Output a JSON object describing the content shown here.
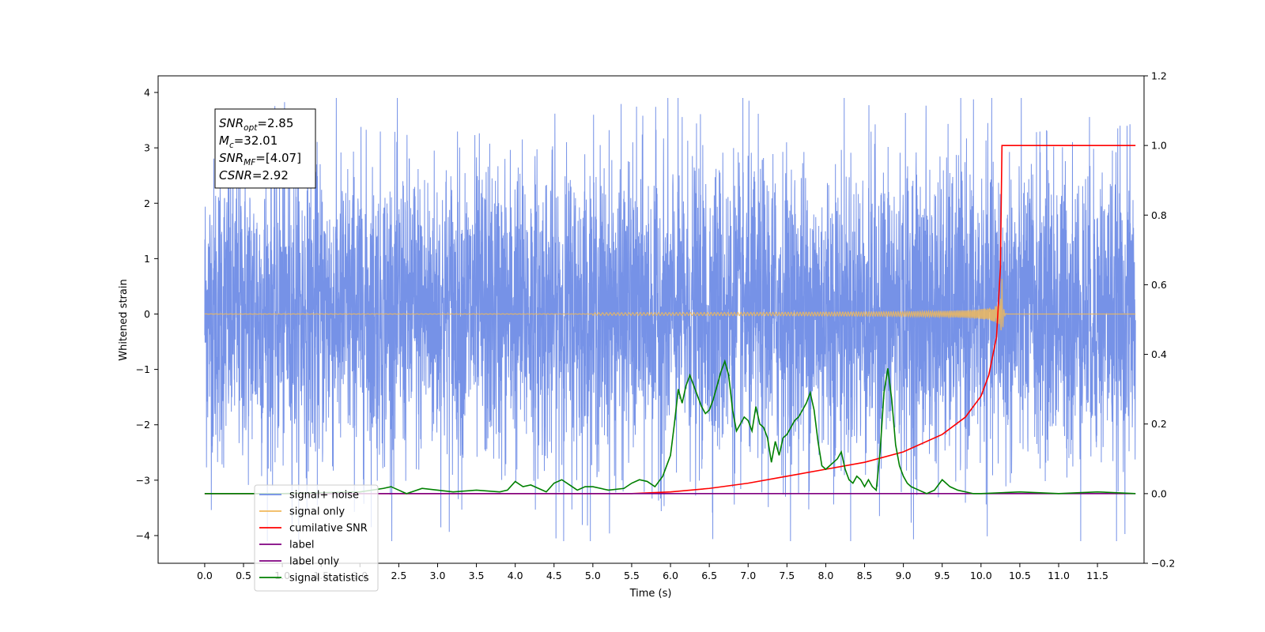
{
  "chart_data": {
    "type": "line",
    "xlabel": "Time (s)",
    "ylabel_left": "Whitened strain",
    "ylabel_right": "",
    "xlim": [
      -0.6,
      12.1
    ],
    "ylim_left": [
      -4.5,
      4.3
    ],
    "ylim_right": [
      -0.2,
      1.2
    ],
    "x_ticks": [
      "0.0",
      "0.5",
      "1.0",
      "1.5",
      "2.0",
      "2.5",
      "3.0",
      "3.5",
      "4.0",
      "4.5",
      "5.0",
      "5.5",
      "6.0",
      "6.5",
      "7.0",
      "7.5",
      "8.0",
      "8.5",
      "9.0",
      "9.5",
      "10.0",
      "10.5",
      "11.0",
      "11.5"
    ],
    "y_ticks_left": [
      "4",
      "3",
      "2",
      "1",
      "0",
      "−1",
      "−2",
      "−3",
      "−4"
    ],
    "y_ticks_right": [
      "1.2",
      "1.0",
      "0.8",
      "0.6",
      "0.4",
      "0.2",
      "0.0",
      "−0.2"
    ],
    "grid": false,
    "legend_position": "lower-left",
    "annotation": {
      "lines": [
        {
          "main": "SNR",
          "sub": "opt",
          "rest": "=2.85"
        },
        {
          "main": "M",
          "sub": "c",
          "rest": "=32.01"
        },
        {
          "main": "SNR",
          "sub": "MF",
          "rest": "=[4.07]"
        },
        {
          "main": "CSNR",
          "sub": "",
          "rest": "=2.92"
        }
      ]
    },
    "series": [
      {
        "name": "signal+ noise",
        "axis": "left",
        "color": "#6f8ce6",
        "kind": "noise",
        "x_range": [
          0.0,
          11.99
        ],
        "typical_range": [
          -2.0,
          2.4
        ],
        "extremes": [
          -4.1,
          3.9
        ]
      },
      {
        "name": "signal only",
        "axis": "left",
        "color": "#f0b85a",
        "kind": "chirp",
        "x_range": [
          0.0,
          11.99
        ],
        "merger_time": 10.27,
        "peak_amplitude": 0.7
      },
      {
        "name": "cumilative SNR",
        "axis": "right",
        "color": "#ff0000",
        "x": [
          0.0,
          5.5,
          6.0,
          6.5,
          7.0,
          7.5,
          8.0,
          8.5,
          9.0,
          9.5,
          9.8,
          10.0,
          10.1,
          10.2,
          10.25,
          10.27,
          10.3,
          11.99
        ],
        "y": [
          0.0,
          0.0,
          0.005,
          0.015,
          0.03,
          0.05,
          0.07,
          0.09,
          0.12,
          0.17,
          0.22,
          0.28,
          0.34,
          0.45,
          0.65,
          1.0,
          1.0,
          1.0
        ]
      },
      {
        "name": "label",
        "axis": "right",
        "color": "#800080",
        "x": [
          0.0,
          11.99
        ],
        "y": [
          0.0,
          0.0
        ]
      },
      {
        "name": "label only",
        "axis": "right",
        "color": "#800080",
        "hidden": true,
        "x": [],
        "y": []
      },
      {
        "name": "signal statistics",
        "axis": "right",
        "color": "#008000",
        "x": [
          0.0,
          1.0,
          2.0,
          2.3,
          2.4,
          2.5,
          2.6,
          2.8,
          3.0,
          3.2,
          3.5,
          3.8,
          3.9,
          4.0,
          4.1,
          4.2,
          4.3,
          4.4,
          4.5,
          4.6,
          4.7,
          4.8,
          4.9,
          5.0,
          5.2,
          5.4,
          5.5,
          5.6,
          5.7,
          5.8,
          5.9,
          6.0,
          6.05,
          6.1,
          6.15,
          6.2,
          6.25,
          6.3,
          6.35,
          6.4,
          6.45,
          6.5,
          6.55,
          6.6,
          6.65,
          6.7,
          6.75,
          6.8,
          6.85,
          6.9,
          6.95,
          7.0,
          7.05,
          7.1,
          7.15,
          7.2,
          7.25,
          7.3,
          7.35,
          7.4,
          7.45,
          7.5,
          7.55,
          7.6,
          7.65,
          7.7,
          7.75,
          7.8,
          7.85,
          7.9,
          7.95,
          8.0,
          8.05,
          8.1,
          8.15,
          8.2,
          8.25,
          8.3,
          8.35,
          8.4,
          8.45,
          8.5,
          8.55,
          8.6,
          8.65,
          8.7,
          8.75,
          8.8,
          8.85,
          8.9,
          8.95,
          9.0,
          9.05,
          9.1,
          9.2,
          9.3,
          9.4,
          9.5,
          9.6,
          9.7,
          9.8,
          9.9,
          10.0,
          10.5,
          11.0,
          11.5,
          11.99
        ],
        "y": [
          0.0,
          0.0,
          0.005,
          0.015,
          0.02,
          0.01,
          0.0,
          0.015,
          0.01,
          0.005,
          0.01,
          0.005,
          0.01,
          0.035,
          0.02,
          0.025,
          0.015,
          0.005,
          0.03,
          0.04,
          0.025,
          0.01,
          0.02,
          0.02,
          0.01,
          0.015,
          0.03,
          0.04,
          0.035,
          0.02,
          0.05,
          0.11,
          0.2,
          0.3,
          0.26,
          0.31,
          0.34,
          0.31,
          0.28,
          0.25,
          0.23,
          0.24,
          0.27,
          0.31,
          0.35,
          0.38,
          0.34,
          0.24,
          0.18,
          0.2,
          0.22,
          0.21,
          0.18,
          0.25,
          0.2,
          0.19,
          0.16,
          0.09,
          0.15,
          0.11,
          0.16,
          0.17,
          0.19,
          0.21,
          0.22,
          0.24,
          0.26,
          0.29,
          0.24,
          0.15,
          0.08,
          0.07,
          0.08,
          0.09,
          0.1,
          0.12,
          0.07,
          0.04,
          0.03,
          0.05,
          0.04,
          0.02,
          0.04,
          0.02,
          0.01,
          0.12,
          0.29,
          0.36,
          0.27,
          0.14,
          0.08,
          0.05,
          0.03,
          0.02,
          0.01,
          0.0,
          0.01,
          0.04,
          0.02,
          0.01,
          0.005,
          0.0,
          0.0,
          0.005,
          0.0,
          0.005,
          0.0
        ]
      }
    ]
  }
}
